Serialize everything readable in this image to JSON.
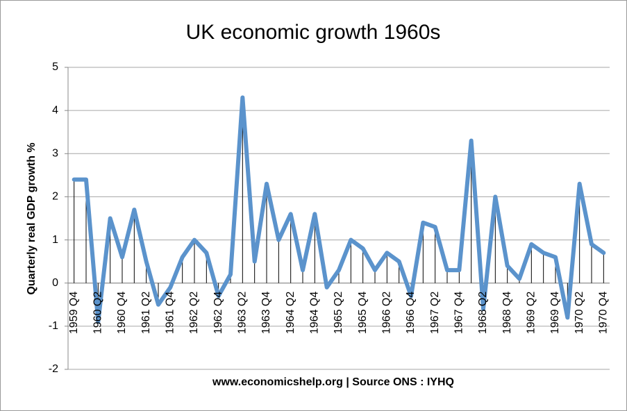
{
  "chart_data": {
    "type": "line",
    "title": "UK economic growth 1960s",
    "xlabel": "www.economicshelp.org | Source ONS : IYHQ",
    "ylabel": "Quarterly real GDP growth %",
    "categories": [
      "1959 Q4",
      null,
      "1960 Q2",
      null,
      "1960 Q4",
      null,
      "1961 Q2",
      null,
      "1961 Q4",
      null,
      "1962 Q2",
      null,
      "1962 Q4",
      null,
      "1963 Q2",
      null,
      "1963 Q4",
      null,
      "1964 Q2",
      null,
      "1964 Q4",
      null,
      "1965 Q2",
      null,
      "1965 Q4",
      null,
      "1966 Q2",
      null,
      "1966 Q4",
      null,
      "1967 Q2",
      null,
      "1967 Q4",
      null,
      "1968 Q2",
      null,
      "1968 Q4",
      null,
      "1969 Q2",
      null,
      "1969 Q4",
      null,
      "1970 Q2",
      null,
      "1970 Q4"
    ],
    "values": [
      2.4,
      2.4,
      -0.9,
      1.5,
      0.6,
      1.7,
      0.5,
      -0.5,
      -0.1,
      0.6,
      1.0,
      0.7,
      -0.3,
      0.2,
      4.3,
      0.5,
      2.3,
      1.0,
      1.6,
      0.3,
      1.6,
      -0.1,
      0.3,
      1.0,
      0.8,
      0.3,
      0.7,
      0.5,
      -0.3,
      1.4,
      1.3,
      0.3,
      0.3,
      3.3,
      -0.6,
      2.0,
      0.4,
      0.1,
      0.9,
      0.7,
      0.6,
      -0.8,
      2.3,
      0.9,
      0.7
    ],
    "color": "#5b93cc",
    "drop_lines": true,
    "ylim": [
      -2,
      5
    ],
    "yticks": [
      -2,
      -1,
      0,
      1,
      2,
      3,
      4,
      5
    ],
    "grid": true
  }
}
